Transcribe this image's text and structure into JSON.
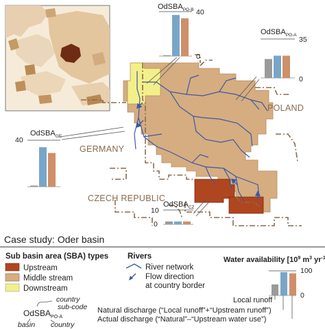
{
  "case_study_title": "Case study: Oder basin",
  "countries": {
    "germany": "GERMANY",
    "poland": "POLAND",
    "czech": "CZECH REPUBLIC"
  },
  "colors": {
    "upstream": "#b0461f",
    "middle": "#d5ad80",
    "downstream": "#f3f08a",
    "border": "#8a6a4e",
    "river": "#3d57a6",
    "bar_local": "#9a9a9a",
    "bar_natural": "#78a6c8",
    "bar_actual": "#cf8f68"
  },
  "legend_sba": {
    "title": "Sub basin area (SBA) types",
    "items": [
      {
        "label": "Upstream",
        "color": "#b0461f"
      },
      {
        "label": "Middle stream",
        "color": "#d5ad80"
      },
      {
        "label": "Downstream",
        "color": "#f3f08a"
      }
    ]
  },
  "naming_key": {
    "base": "OdSBA",
    "subscript": "PO-A",
    "country_subcode": "country\nsub-code",
    "basin": "basin",
    "country": "country"
  },
  "legend_rivers": {
    "title": "Rivers",
    "network": "River network",
    "flow": "Flow direction\nat country border"
  },
  "legend_water": {
    "title": "Water availability [10",
    "title_sup1": "9",
    "title_mid": " m",
    "title_sup2": "3",
    "title_end": " yr",
    "title_sup3": "-1",
    "title_close": "]",
    "max_tick": "100",
    "zero_tick": "0",
    "values": [
      0.45,
      0.95,
      0.9
    ],
    "local_runoff": "Local runoff",
    "natural": "Natural discharge (“Local runoff”+“Upstream runoff”)",
    "actual": "Actual discharge  (“Natural”–“Upstream water use”)"
  },
  "charts": [
    {
      "id": "po-b",
      "title": "OdSBA",
      "sub": "PO-B",
      "ymax": 40,
      "max_tick": "40",
      "zero_tick": "0",
      "local": 0.8,
      "natural": 37,
      "actual": 34
    },
    {
      "id": "po-a",
      "title": "OdSBA",
      "sub": "PO-A",
      "ymax": 35,
      "max_tick": "35",
      "zero_tick": "0",
      "local": 17,
      "natural": 20,
      "actual": 20
    },
    {
      "id": "ge",
      "title": "OdSBA",
      "sub": "GE",
      "ymax": 40,
      "max_tick": "40",
      "zero_tick": "",
      "local": 1,
      "natural": 34,
      "actual": 29
    },
    {
      "id": "cz",
      "title": "OdSBA",
      "sub": "CZ",
      "ymax": 10,
      "max_tick": "10",
      "zero_tick": "0",
      "local": 2,
      "natural": 2,
      "actual": 2
    }
  ]
}
